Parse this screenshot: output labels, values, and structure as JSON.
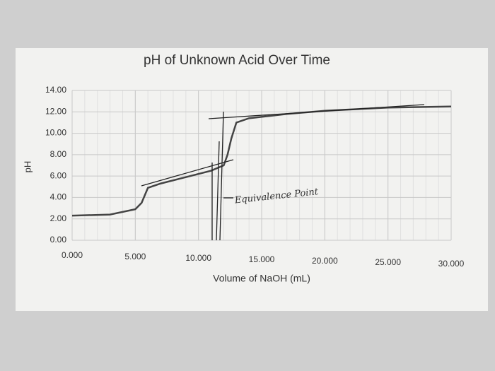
{
  "chart_data": {
    "type": "line",
    "title": "pH of Unknown Acid Over Time",
    "x_label": "Volume of NaOH (mL)",
    "y_label": "pH",
    "annotation": "Equivalence Point",
    "x": [
      0,
      3,
      5,
      5.5,
      6,
      7,
      9,
      11,
      12,
      12.3,
      12.6,
      13,
      14,
      17,
      20,
      25,
      30
    ],
    "series": [
      {
        "name": "pH",
        "color": "#444444",
        "values": [
          2.3,
          2.4,
          2.9,
          3.5,
          4.9,
          5.3,
          5.9,
          6.5,
          7.0,
          8.0,
          9.5,
          11.0,
          11.4,
          11.8,
          12.1,
          12.4,
          12.5
        ]
      }
    ],
    "xlim": [
      0,
      30
    ],
    "ylim": [
      0,
      14
    ],
    "xticks": [
      {
        "value": 0,
        "label": "0.000"
      },
      {
        "value": 5,
        "label": "5.000"
      },
      {
        "value": 10,
        "label": "10.000"
      },
      {
        "value": 15,
        "label": "15.000"
      },
      {
        "value": 20,
        "label": "20.000"
      },
      {
        "value": 25,
        "label": "25.000"
      },
      {
        "value": 30,
        "label": "30.000"
      }
    ],
    "yticks": [
      {
        "value": 0,
        "label": "0.00"
      },
      {
        "value": 2,
        "label": "2.00"
      },
      {
        "value": 4,
        "label": "4.00"
      },
      {
        "value": 6,
        "label": "6.00"
      },
      {
        "value": 8,
        "label": "8.00"
      },
      {
        "value": 10,
        "label": "10.00"
      },
      {
        "value": 12,
        "label": "12.00"
      },
      {
        "value": 14,
        "label": "14.00"
      }
    ],
    "grid": true
  }
}
